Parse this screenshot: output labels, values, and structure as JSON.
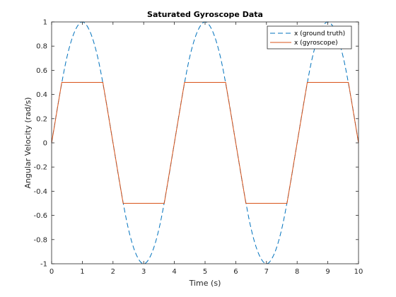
{
  "chart_data": {
    "type": "line",
    "title": "Saturated Gyroscope Data",
    "xlabel": "Time (s)",
    "ylabel": "Angular Velocity (rad/s)",
    "xlim": [
      0,
      10
    ],
    "ylim": [
      -1,
      1
    ],
    "xticks": [
      0,
      1,
      2,
      3,
      4,
      5,
      6,
      7,
      8,
      9,
      10
    ],
    "xtick_labels": [
      "0",
      "1",
      "2",
      "3",
      "4",
      "5",
      "6",
      "7",
      "8",
      "9",
      "10"
    ],
    "yticks": [
      -1,
      -0.8,
      -0.6,
      -0.4,
      -0.2,
      0,
      0.2,
      0.4,
      0.6,
      0.8,
      1
    ],
    "ytick_labels": [
      "-1",
      "-0.8",
      "-0.6",
      "-0.4",
      "-0.2",
      "0",
      "0.2",
      "0.4",
      "0.6",
      "0.8",
      "1"
    ],
    "grid": false,
    "legend_position": "top-right",
    "series": [
      {
        "name": "x (ground truth)",
        "style": "dashed",
        "color": "#0072BD",
        "x": [
          0,
          0.25,
          0.5,
          0.75,
          1,
          1.25,
          1.5,
          1.75,
          2,
          2.25,
          2.5,
          2.75,
          3,
          3.25,
          3.5,
          3.75,
          4,
          4.25,
          4.5,
          4.75,
          5,
          5.25,
          5.5,
          5.75,
          6,
          6.25,
          6.5,
          6.75,
          7,
          7.25,
          7.5,
          7.75,
          8,
          8.25,
          8.5,
          8.75,
          9,
          9.25,
          9.5,
          9.75,
          10
        ],
        "y": [
          0,
          0.38,
          0.71,
          0.92,
          1,
          0.92,
          0.71,
          0.38,
          0,
          -0.38,
          -0.71,
          -0.92,
          -1,
          -0.92,
          -0.71,
          -0.38,
          0,
          0.38,
          0.71,
          0.92,
          1,
          0.92,
          0.71,
          0.38,
          0,
          -0.38,
          -0.71,
          -0.92,
          -1,
          -0.92,
          -0.71,
          -0.38,
          0,
          0.38,
          0.71,
          0.92,
          1,
          0.92,
          0.71,
          0.38,
          0
        ]
      },
      {
        "name": "x (gyroscope)",
        "style": "solid",
        "color": "#D95319",
        "x": [
          0,
          0.33,
          1.67,
          2.33,
          3.67,
          4.33,
          5.67,
          6.33,
          7.67,
          8.33,
          9.67,
          10
        ],
        "y": [
          0,
          0.5,
          0.5,
          -0.5,
          -0.5,
          0.5,
          0.5,
          -0.5,
          -0.5,
          0.5,
          0.5,
          0
        ]
      }
    ]
  }
}
